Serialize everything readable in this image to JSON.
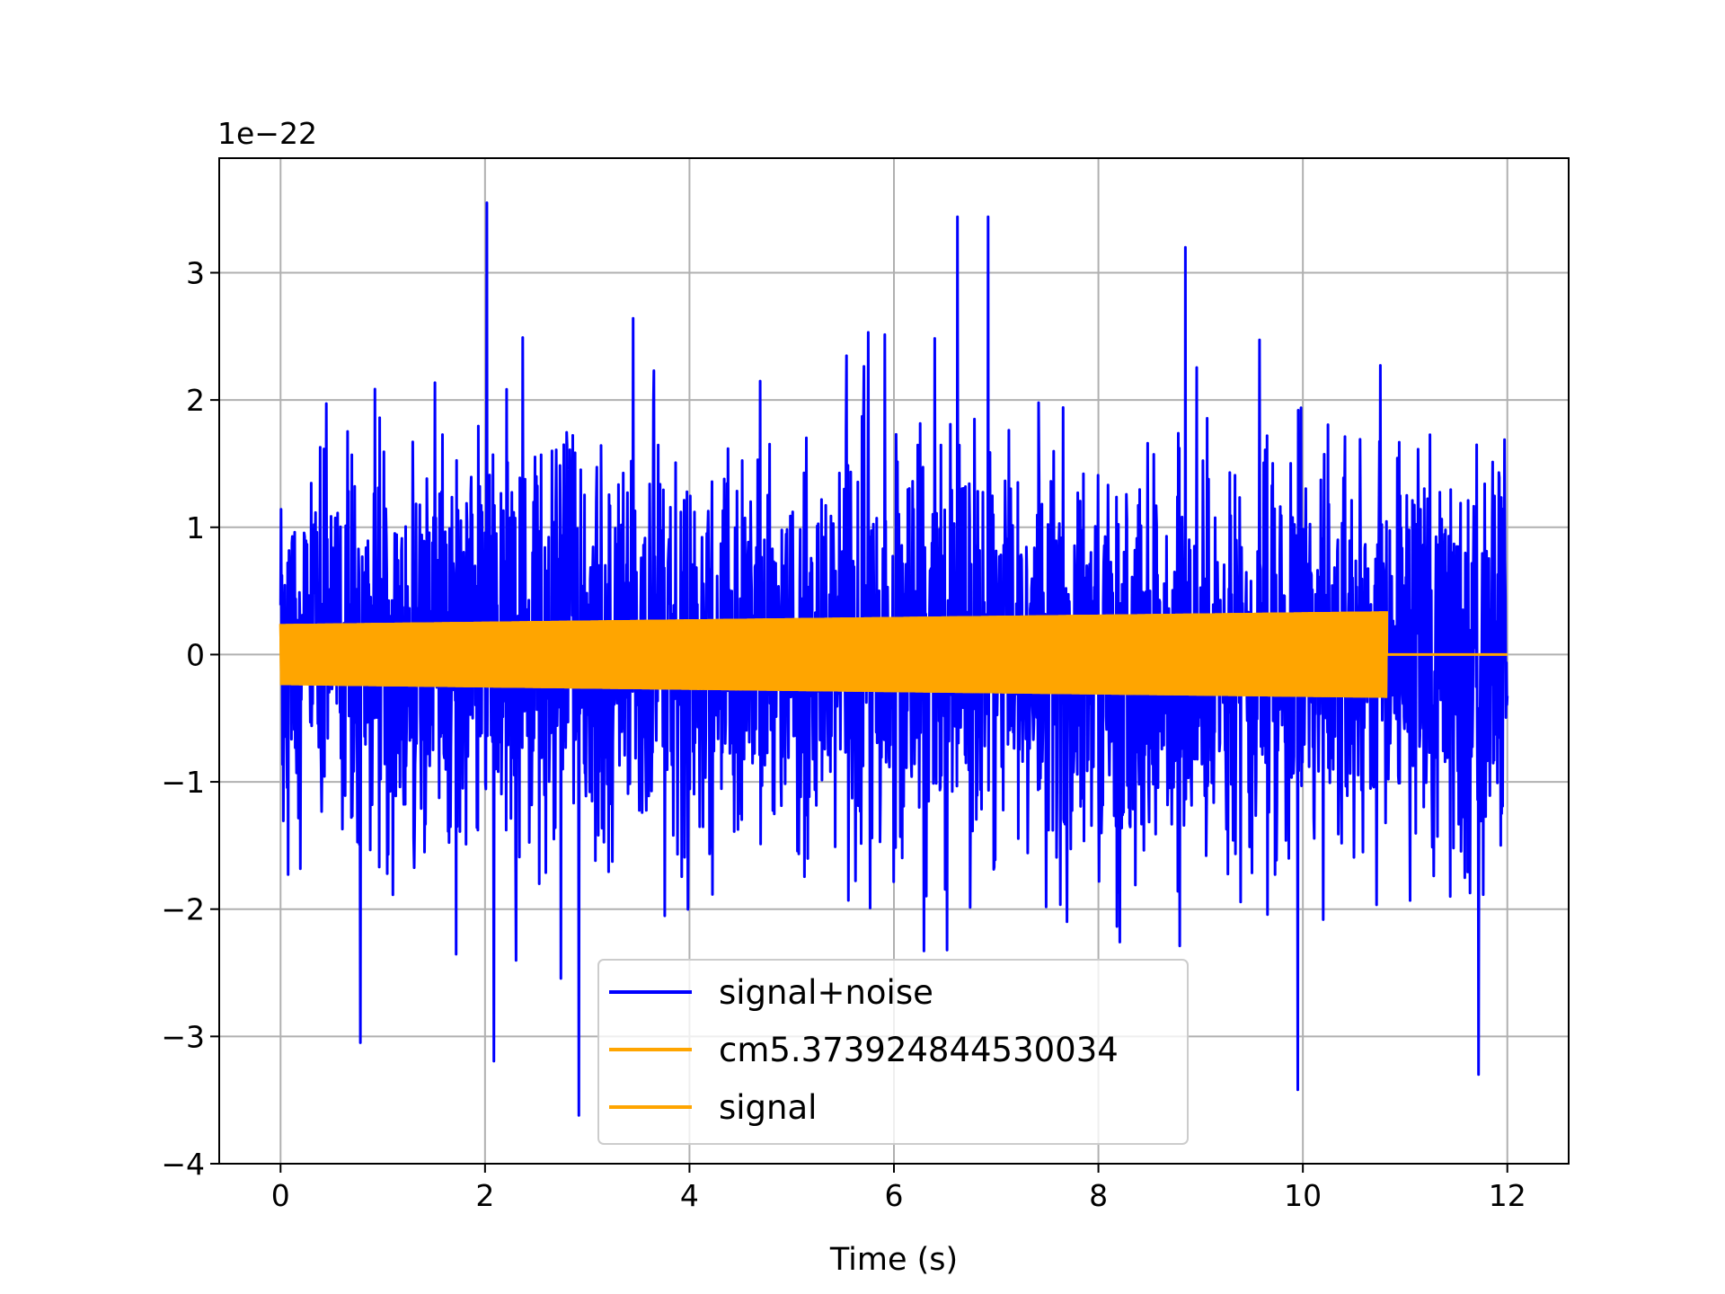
{
  "chart_data": {
    "type": "line",
    "title": "",
    "xlabel": "Time (s)",
    "ylabel": "",
    "offset_text": "1e−22",
    "xlim": [
      -0.6,
      12.6
    ],
    "ylim": [
      -4,
      3.9
    ],
    "scale_exponent": -22,
    "grid": true,
    "legend_position": "lower-center",
    "x_ticks": [
      {
        "value": 0,
        "label": "0"
      },
      {
        "value": 2,
        "label": "2"
      },
      {
        "value": 4,
        "label": "4"
      },
      {
        "value": 6,
        "label": "6"
      },
      {
        "value": 8,
        "label": "8"
      },
      {
        "value": 10,
        "label": "10"
      },
      {
        "value": 12,
        "label": "12"
      }
    ],
    "y_ticks": [
      {
        "value": -4,
        "label": "−4"
      },
      {
        "value": -3,
        "label": "−3"
      },
      {
        "value": -2,
        "label": "−2"
      },
      {
        "value": -1,
        "label": "−1"
      },
      {
        "value": 0,
        "label": "0"
      },
      {
        "value": 1,
        "label": "1"
      },
      {
        "value": 2,
        "label": "2"
      },
      {
        "value": 3,
        "label": "3"
      }
    ],
    "series": [
      {
        "name": "signal+noise",
        "color": "#0000ff",
        "kind": "noisy",
        "x_range": [
          0,
          12
        ],
        "noise_rms": 0.8,
        "approx_min": -3.62,
        "approx_max": 3.55,
        "peaks": [
          {
            "x": 2.02,
            "y": 3.55
          },
          {
            "x": 6.62,
            "y": 3.44
          },
          {
            "x": 6.92,
            "y": 3.44
          },
          {
            "x": 8.85,
            "y": 3.2
          },
          {
            "x": 2.92,
            "y": -3.62
          },
          {
            "x": 9.95,
            "y": -3.42
          },
          {
            "x": 11.72,
            "y": -3.3
          },
          {
            "x": 0.78,
            "y": -3.05
          }
        ]
      },
      {
        "name": "cm5.373924844530034",
        "color": "#ffa500",
        "kind": "chirp",
        "x_range": [
          0,
          10.82
        ],
        "amplitude_start": 0.24,
        "amplitude_end": 0.34
      },
      {
        "name": "signal",
        "color": "#ffa500",
        "kind": "chirp",
        "x_range": [
          0,
          10.82
        ],
        "amplitude_start": 0.24,
        "amplitude_end": 0.34,
        "zero_until": 12
      }
    ]
  }
}
